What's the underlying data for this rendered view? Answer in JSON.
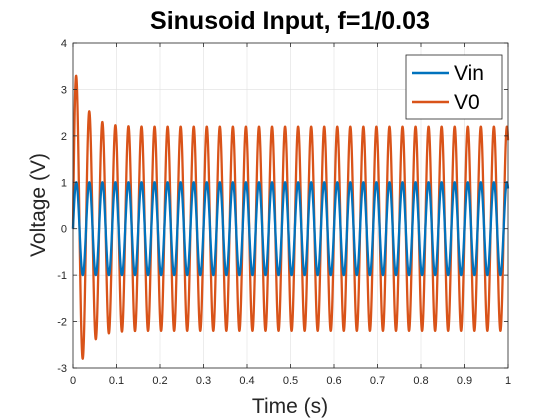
{
  "chart_data": {
    "type": "line",
    "title": "Sinusoid Input, f=1/0.03",
    "xlabel": "Time (s)",
    "ylabel": "Voltage (V)",
    "xlim": [
      0,
      1
    ],
    "ylim": [
      -3,
      4
    ],
    "xticks": [
      "0",
      "0.1",
      "0.2",
      "0.3",
      "0.4",
      "0.5",
      "0.6",
      "0.7",
      "0.8",
      "0.9",
      "1"
    ],
    "yticks": [
      "-3",
      "-2",
      "-1",
      "0",
      "1",
      "2",
      "3",
      "4"
    ],
    "grid": true,
    "legend_position": "top-right",
    "series": [
      {
        "name": "Vin",
        "color": "#0072BD",
        "function": "sin",
        "amplitude": 1,
        "period": 0.03,
        "x_range": [
          0,
          1
        ]
      },
      {
        "name": "V0",
        "color": "#D95319",
        "function": "damped-resonant-response",
        "steady_amplitude": 2.2,
        "period": 0.03,
        "initial_peak": 3.25,
        "x_range": [
          0,
          1
        ]
      }
    ]
  }
}
